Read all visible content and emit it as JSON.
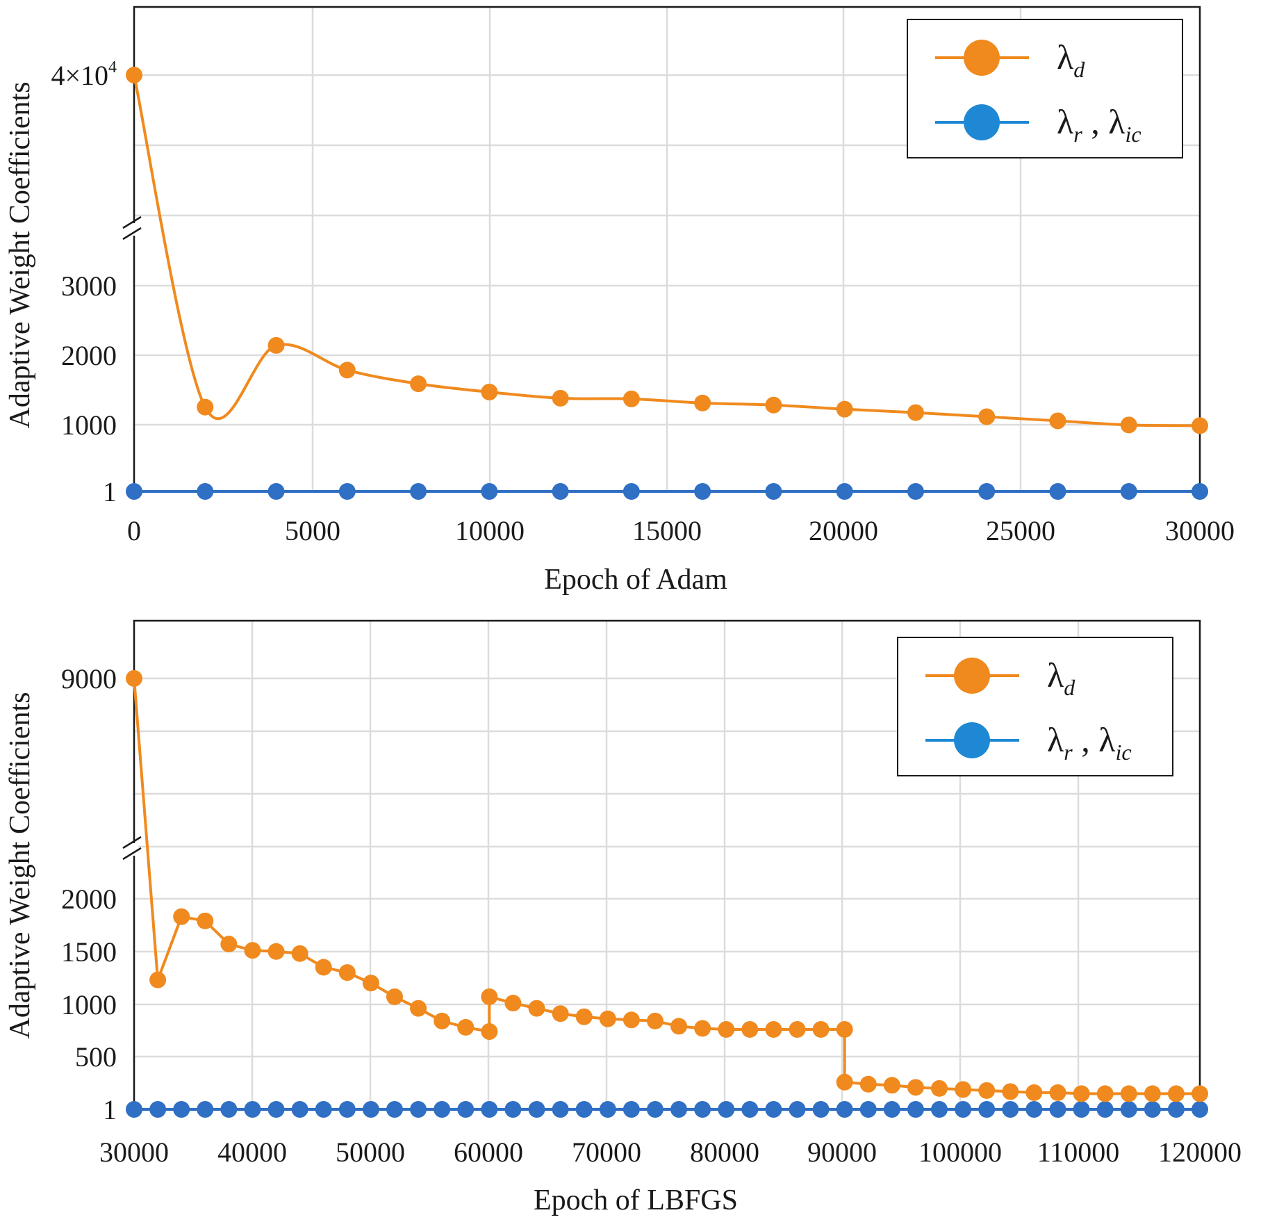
{
  "colors": {
    "orange": "#f08a1e",
    "blue": "#2f6fc4",
    "legend_blue": "#1e88d4",
    "grid": "#dcdcdc",
    "axis": "#1a1a1a"
  },
  "chart_data": [
    {
      "type": "line",
      "xlabel": "Epoch of Adam",
      "ylabel": "Adaptive Weight Coefficients",
      "xlim": [
        0,
        30000
      ],
      "x_ticks": [
        "0",
        "5000",
        "10000",
        "15000",
        "20000",
        "25000",
        "30000"
      ],
      "y_ticks": [
        {
          "value": 1,
          "label": "1"
        },
        {
          "value": 1000,
          "label": "1000"
        },
        {
          "value": 2000,
          "label": "2000"
        },
        {
          "value": 3000,
          "label": "3000"
        },
        {
          "value": 40000,
          "label": "4×10",
          "sup": "4"
        }
      ],
      "axis_break": true,
      "grid": true,
      "legend_position": "top-right",
      "legend": [
        {
          "symbol": "λ",
          "sub": "d",
          "color": "orange"
        },
        {
          "symbol": "λ",
          "sub": "r",
          "symbol2": "λ",
          "sub2": "ic",
          "separator": " , ",
          "color": "blue"
        }
      ],
      "series": [
        {
          "color": "orange",
          "x": [
            0,
            2000,
            4000,
            6000,
            8000,
            10000,
            12000,
            14000,
            16000,
            18000,
            20000,
            22000,
            24000,
            26000,
            28000,
            30000
          ],
          "values": [
            40000,
            1230,
            2130,
            1770,
            1570,
            1450,
            1360,
            1350,
            1290,
            1260,
            1200,
            1150,
            1090,
            1030,
            970,
            960
          ]
        },
        {
          "color": "blue",
          "x": [
            0,
            2000,
            4000,
            6000,
            8000,
            10000,
            12000,
            14000,
            16000,
            18000,
            20000,
            22000,
            24000,
            26000,
            28000,
            30000
          ],
          "values": [
            1,
            1,
            1,
            1,
            1,
            1,
            1,
            1,
            1,
            1,
            1,
            1,
            1,
            1,
            1,
            1
          ]
        }
      ]
    },
    {
      "type": "line",
      "xlabel": "Epoch of LBFGS",
      "ylabel": "Adaptive Weight Coefficients",
      "xlim": [
        30000,
        120000
      ],
      "x_ticks": [
        "30000",
        "40000",
        "50000",
        "60000",
        "70000",
        "80000",
        "90000",
        "100000",
        "110000",
        "120000"
      ],
      "y_ticks": [
        {
          "value": 1,
          "label": "1"
        },
        {
          "value": 500,
          "label": "500"
        },
        {
          "value": 1000,
          "label": "1000"
        },
        {
          "value": 1500,
          "label": "1500"
        },
        {
          "value": 2000,
          "label": "2000"
        },
        {
          "value": 9000,
          "label": "9000"
        }
      ],
      "axis_break": true,
      "grid": true,
      "legend_position": "top-right",
      "legend": [
        {
          "symbol": "λ",
          "sub": "d",
          "color": "orange"
        },
        {
          "symbol": "λ",
          "sub": "r",
          "symbol2": "λ",
          "sub2": "ic",
          "separator": " , ",
          "color": "blue"
        }
      ],
      "series": [
        {
          "color": "orange",
          "x": [
            30000,
            32000,
            34000,
            36000,
            38000,
            40000,
            42000,
            44000,
            46000,
            48000,
            50000,
            52000,
            54000,
            56000,
            58000,
            60000,
            60000,
            62000,
            64000,
            66000,
            68000,
            70000,
            72000,
            74000,
            76000,
            78000,
            80000,
            82000,
            84000,
            86000,
            88000,
            90000,
            90000,
            92000,
            94000,
            96000,
            98000,
            100000,
            102000,
            104000,
            106000,
            108000,
            110000,
            112000,
            114000,
            116000,
            118000,
            120000
          ],
          "values": [
            9000,
            1230,
            1830,
            1790,
            1570,
            1510,
            1500,
            1480,
            1350,
            1300,
            1200,
            1070,
            960,
            840,
            780,
            740,
            1070,
            1010,
            960,
            910,
            880,
            860,
            850,
            840,
            790,
            770,
            760,
            760,
            760,
            760,
            760,
            760,
            260,
            240,
            230,
            210,
            200,
            190,
            180,
            170,
            160,
            160,
            150,
            150,
            150,
            150,
            150,
            150
          ]
        },
        {
          "color": "blue",
          "x": [
            30000,
            32000,
            34000,
            36000,
            38000,
            40000,
            42000,
            44000,
            46000,
            48000,
            50000,
            52000,
            54000,
            56000,
            58000,
            60000,
            62000,
            64000,
            66000,
            68000,
            70000,
            72000,
            74000,
            76000,
            78000,
            80000,
            82000,
            84000,
            86000,
            88000,
            90000,
            92000,
            94000,
            96000,
            98000,
            100000,
            102000,
            104000,
            106000,
            108000,
            110000,
            112000,
            114000,
            116000,
            118000,
            120000
          ],
          "values": [
            1,
            1,
            1,
            1,
            1,
            1,
            1,
            1,
            1,
            1,
            1,
            1,
            1,
            1,
            1,
            1,
            1,
            1,
            1,
            1,
            1,
            1,
            1,
            1,
            1,
            1,
            1,
            1,
            1,
            1,
            1,
            1,
            1,
            1,
            1,
            1,
            1,
            1,
            1,
            1,
            1,
            1,
            1,
            1,
            1,
            1
          ]
        }
      ]
    }
  ]
}
